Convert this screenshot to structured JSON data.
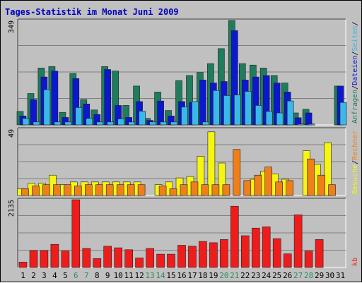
{
  "chart_data": {
    "type": "bar",
    "title": "Tages-Statistik im Monat Juni 2009",
    "categories": [
      "1",
      "2",
      "3",
      "4",
      "5",
      "6",
      "7",
      "8",
      "9",
      "10",
      "11",
      "12",
      "13",
      "14",
      "15",
      "16",
      "17",
      "18",
      "19",
      "20",
      "21",
      "22",
      "23",
      "24",
      "25",
      "26",
      "27",
      "28",
      "29",
      "30",
      "31"
    ],
    "weekend_days": [
      "6",
      "7",
      "13",
      "14",
      "20",
      "21",
      "27",
      "28"
    ],
    "panels": [
      {
        "id": "requests",
        "ymax_label": "349",
        "ylim": [
          0,
          349
        ],
        "series": [
          {
            "name": "Anfragen",
            "color": "#1f7c5c",
            "values": [
              45,
              105,
              190,
              195,
              42,
              172,
              85,
              50,
              195,
              180,
              65,
              130,
              22,
              110,
              48,
              148,
              165,
              175,
              205,
              255,
              349,
              205,
              200,
              190,
              165,
              140,
              40,
              52,
              0,
              0,
              130
            ]
          },
          {
            "name": "Dateien",
            "color": "#0b18d0",
            "values": [
              30,
              85,
              160,
              180,
              25,
              155,
              70,
              35,
              185,
              65,
              25,
              78,
              15,
              80,
              30,
              78,
              75,
              150,
              140,
              145,
              315,
              150,
              160,
              165,
              140,
              110,
              24,
              40,
              0,
              0,
              130
            ]
          },
          {
            "name": "Seiten",
            "color": "#3ab8ea",
            "values": [
              22,
              10,
              118,
              10,
              10,
              58,
              22,
              10,
              10,
              20,
              10,
              46,
              10,
              10,
              10,
              60,
              78,
              10,
              115,
              98,
              100,
              112,
              65,
              45,
              40,
              80,
              3,
              3,
              0,
              0,
              75
            ]
          }
        ],
        "legend": [
          "Anfragen",
          "/",
          "Dateien",
          "/",
          "Seiten",
          "/"
        ]
      },
      {
        "id": "visits",
        "ymax_label": "49",
        "ylim": [
          0,
          49
        ],
        "series": [
          {
            "name": "Besuche",
            "color": "#f5f511",
            "values": [
              5,
              9,
              9,
              15,
              8,
              10,
              10,
              10,
              10,
              10,
              10,
              10,
              0,
              8,
              10,
              13,
              14,
              29,
              47,
              24,
              0,
              0,
              12,
              18,
              16,
              12,
              0,
              33,
              23,
              39,
              0
            ]
          },
          {
            "name": "Rechner",
            "color": "#ef7f1a",
            "values": [
              5,
              7,
              8,
              8,
              8,
              7,
              8,
              8,
              8,
              8,
              8,
              8,
              0,
              7,
              5,
              8,
              10,
              8,
              8,
              8,
              34,
              11,
              15,
              21,
              10,
              11,
              0,
              27,
              15,
              8,
              0
            ]
          }
        ],
        "legend": [
          "Besuche",
          "/",
          "Rechner"
        ]
      },
      {
        "id": "kb",
        "ymax_label": "2135",
        "ylim": [
          0,
          2135
        ],
        "series": [
          {
            "name": "kb",
            "color": "#ef1c1c",
            "values": [
              170,
              530,
              530,
              730,
              520,
              2135,
              600,
              280,
              670,
              620,
              560,
              300,
              600,
              420,
              420,
              700,
              670,
              820,
              780,
              880,
              1930,
              1000,
              1240,
              1280,
              910,
              430,
              1660,
              520,
              880,
              0,
              0
            ]
          }
        ],
        "legend": [
          "kb"
        ]
      }
    ],
    "colors": {
      "background": "#c0c0c0",
      "plot_bg": "#c0c0c0",
      "gridline": "#808080",
      "weekday_tick": "#000000",
      "weekend_tick": "#2f8c5c",
      "title": "#0000c0",
      "legend_separator": "#000000"
    }
  }
}
